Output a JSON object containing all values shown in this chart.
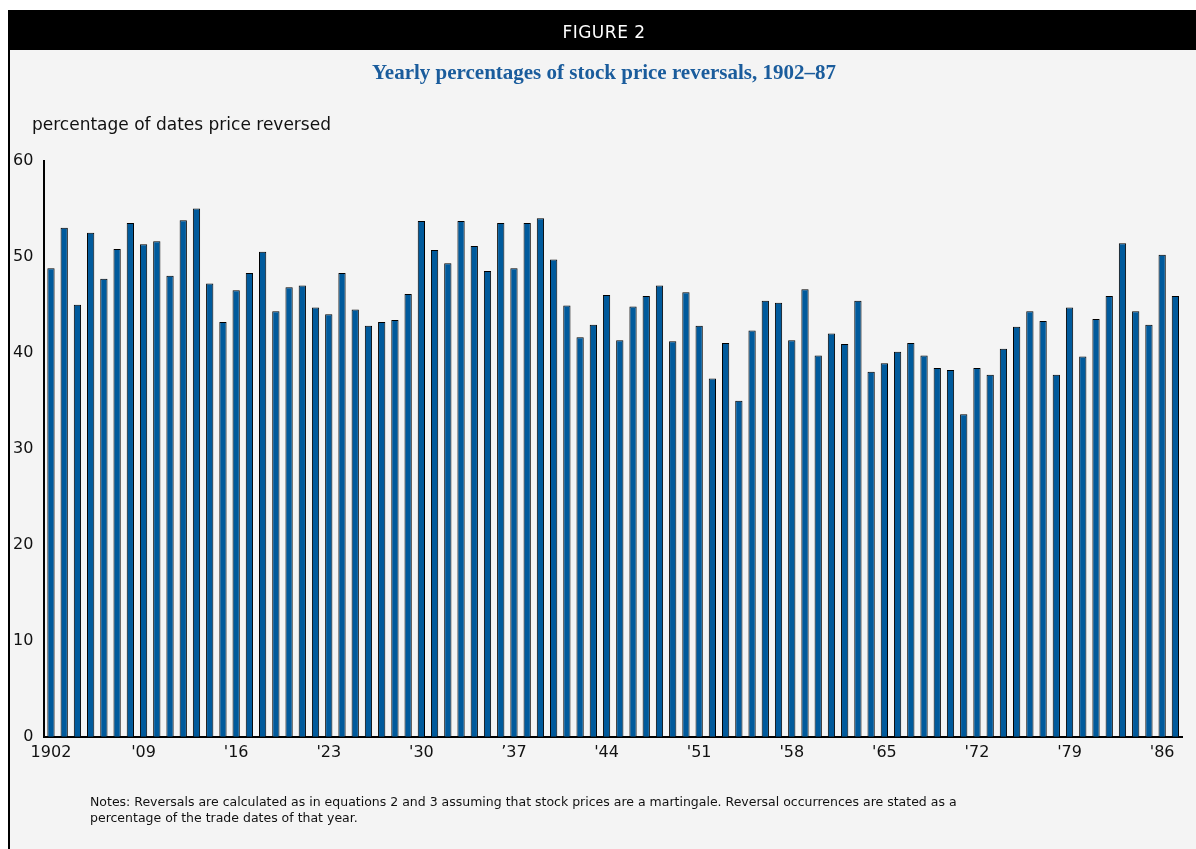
{
  "chart_data": {
    "type": "bar",
    "subtitle": "FIGURE 2",
    "title": "Yearly percentages of stock price reversals, 1902–87",
    "ylabel": "percentage of dates price reversed",
    "categories": [
      "1902",
      null,
      null,
      null,
      null,
      null,
      null,
      "'09",
      null,
      null,
      null,
      null,
      null,
      null,
      "'16",
      null,
      null,
      null,
      null,
      null,
      null,
      "'23",
      null,
      null,
      null,
      null,
      null,
      null,
      "'30",
      null,
      null,
      null,
      null,
      null,
      null,
      "’37",
      null,
      null,
      null,
      null,
      null,
      null,
      "'44",
      null,
      null,
      null,
      null,
      null,
      null,
      "'51",
      null,
      null,
      null,
      null,
      null,
      null,
      "'58",
      null,
      null,
      null,
      null,
      null,
      null,
      "'65",
      null,
      null,
      null,
      null,
      null,
      null,
      "'72",
      null,
      null,
      null,
      null,
      null,
      null,
      "'79",
      null,
      null,
      null,
      null,
      null,
      null,
      "'86",
      null
    ],
    "values": [
      48.8,
      53.0,
      45.0,
      52.5,
      47.7,
      50.8,
      53.5,
      51.3,
      51.6,
      48.0,
      53.8,
      55.0,
      47.2,
      43.2,
      46.5,
      48.3,
      50.5,
      44.3,
      46.8,
      47.0,
      44.7,
      44.0,
      48.3,
      44.5,
      42.8,
      43.2,
      43.4,
      46.1,
      53.7,
      50.7,
      49.3,
      53.7,
      51.1,
      48.5,
      53.5,
      48.8,
      53.5,
      54.0,
      49.7,
      44.9,
      41.6,
      42.9,
      46.0,
      41.3,
      44.8,
      45.9,
      47.0,
      41.2,
      46.3,
      42.8,
      37.3,
      41.0,
      35.0,
      42.3,
      45.4,
      45.2,
      41.3,
      46.6,
      39.7,
      42.0,
      40.9,
      45.4,
      38.0,
      38.9,
      40.1,
      41.0,
      39.7,
      38.4,
      38.2,
      33.6,
      38.4,
      37.7,
      40.4,
      42.7,
      44.3,
      43.3,
      37.7,
      44.7,
      39.6,
      43.5,
      45.9,
      51.4,
      44.3,
      42.9,
      50.2,
      45.9
    ],
    "color": "#005a9c",
    "ylim": [
      0,
      60
    ],
    "yticks": [
      0,
      10,
      20,
      30,
      40,
      50,
      60
    ],
    "annotations": [
      "Notes: Reversals are calculated as in equations 2 and 3 assuming that stock prices are a martingale. Reversal occurrences are stated as a percentage of the trade dates of that year."
    ]
  }
}
